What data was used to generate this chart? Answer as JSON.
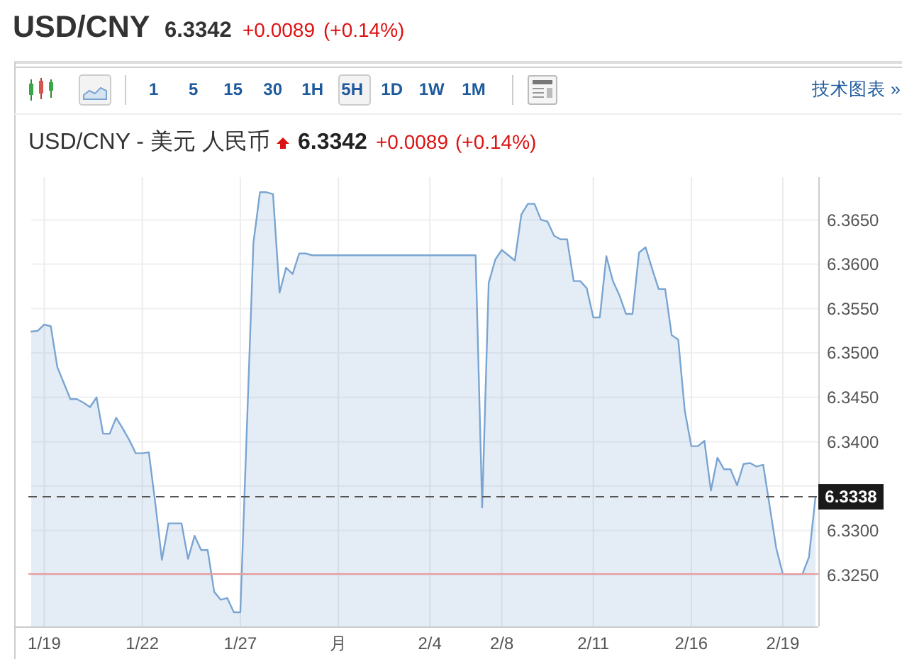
{
  "chart_data": {
    "type": "area",
    "title": "USD/CNY",
    "subtitle": "USD/CNY - 美元 人民币",
    "annotations": [
      "6.3342",
      "+0.0089",
      "(+0.14%)",
      "1 5 15 30 1H 5H 1D 1W 1M",
      "技术图表 »",
      "6.3342",
      "+0.0089",
      "(+0.14%)"
    ],
    "categories": [
      null,
      null,
      "1/19",
      null,
      null,
      null,
      null,
      null,
      null,
      null,
      null,
      null,
      null,
      null,
      null,
      null,
      null,
      "1/22",
      null,
      null,
      null,
      null,
      null,
      null,
      null,
      null,
      null,
      null,
      null,
      null,
      null,
      null,
      "1/27",
      null,
      null,
      null,
      null,
      null,
      null,
      null,
      null,
      null,
      null,
      null,
      null,
      null,
      null,
      "月",
      null,
      null,
      null,
      null,
      null,
      null,
      null,
      null,
      null,
      null,
      null,
      null,
      null,
      "2/4",
      null,
      null,
      null,
      null,
      null,
      null,
      null,
      null,
      null,
      null,
      "2/8",
      null,
      null,
      null,
      null,
      null,
      null,
      null,
      null,
      null,
      null,
      null,
      null,
      null,
      "2/11",
      null,
      null,
      null,
      null,
      null,
      null,
      null,
      null,
      null,
      null,
      null,
      null,
      null,
      null,
      "2/16",
      null,
      null,
      null,
      null,
      null,
      null,
      null,
      null,
      null,
      null,
      null,
      null,
      null,
      "2/19",
      null,
      null,
      null,
      null,
      null
    ],
    "values": [
      6.3524,
      6.3525,
      6.3532,
      6.353,
      6.3484,
      6.3466,
      6.3448,
      6.3448,
      6.3444,
      6.3439,
      6.345,
      6.3409,
      6.3409,
      6.3427,
      6.3415,
      6.3402,
      6.3387,
      6.3387,
      6.3388,
      6.333,
      6.3267,
      6.3308,
      6.3308,
      6.3308,
      6.3268,
      6.3294,
      6.3278,
      6.3278,
      6.3231,
      6.3222,
      6.3224,
      6.3208,
      6.3208,
      6.3416,
      6.3624,
      6.3681,
      6.3681,
      6.3679,
      6.3568,
      6.3596,
      6.3589,
      6.3612,
      6.3612,
      6.361,
      6.361,
      6.361,
      6.361,
      6.361,
      6.361,
      6.361,
      6.361,
      6.361,
      6.361,
      6.361,
      6.361,
      6.361,
      6.361,
      6.361,
      6.361,
      6.361,
      6.361,
      6.361,
      6.361,
      6.361,
      6.361,
      6.361,
      6.361,
      6.361,
      6.361,
      6.3326,
      6.3579,
      6.3605,
      6.3616,
      6.361,
      6.3604,
      6.3656,
      6.3668,
      6.3668,
      6.365,
      6.3648,
      6.3632,
      6.3628,
      6.3628,
      6.3581,
      6.3581,
      6.3573,
      6.354,
      6.354,
      6.3609,
      6.3581,
      6.3565,
      6.3544,
      6.3544,
      6.3613,
      6.3619,
      6.3595,
      6.3572,
      6.3572,
      6.352,
      6.3515,
      6.3435,
      6.3395,
      6.3395,
      6.3401,
      6.3345,
      6.3382,
      6.3369,
      6.3369,
      6.3351,
      6.3375,
      6.3376,
      6.3372,
      6.3374,
      6.3327,
      6.328,
      6.3251,
      6.3251,
      6.3251,
      6.3251,
      6.327,
      6.3338
    ],
    "color": "#7aa5d2",
    "ylim": [
      6.3192,
      6.3698
    ],
    "yticks": [
      {
        "value": 6.325,
        "label": "6.3250"
      },
      {
        "value": 6.33,
        "label": "6.3300"
      },
      {
        "value": 6.335,
        "label": null
      },
      {
        "value": 6.34,
        "label": "6.3400"
      },
      {
        "value": 6.345,
        "label": "6.3450"
      },
      {
        "value": 6.35,
        "label": "6.3500"
      },
      {
        "value": 6.355,
        "label": "6.3550"
      },
      {
        "value": 6.36,
        "label": "6.3600"
      },
      {
        "value": 6.365,
        "label": "6.3650"
      }
    ],
    "grid": true,
    "ref_lines": [
      {
        "axis": "y",
        "value": 6.3338,
        "label": "6.3338",
        "color": "#555555",
        "line_style": "dashed"
      },
      {
        "axis": "y",
        "value": 6.3251,
        "color": "#eb9a9a",
        "line_style": "solid"
      }
    ]
  }
}
